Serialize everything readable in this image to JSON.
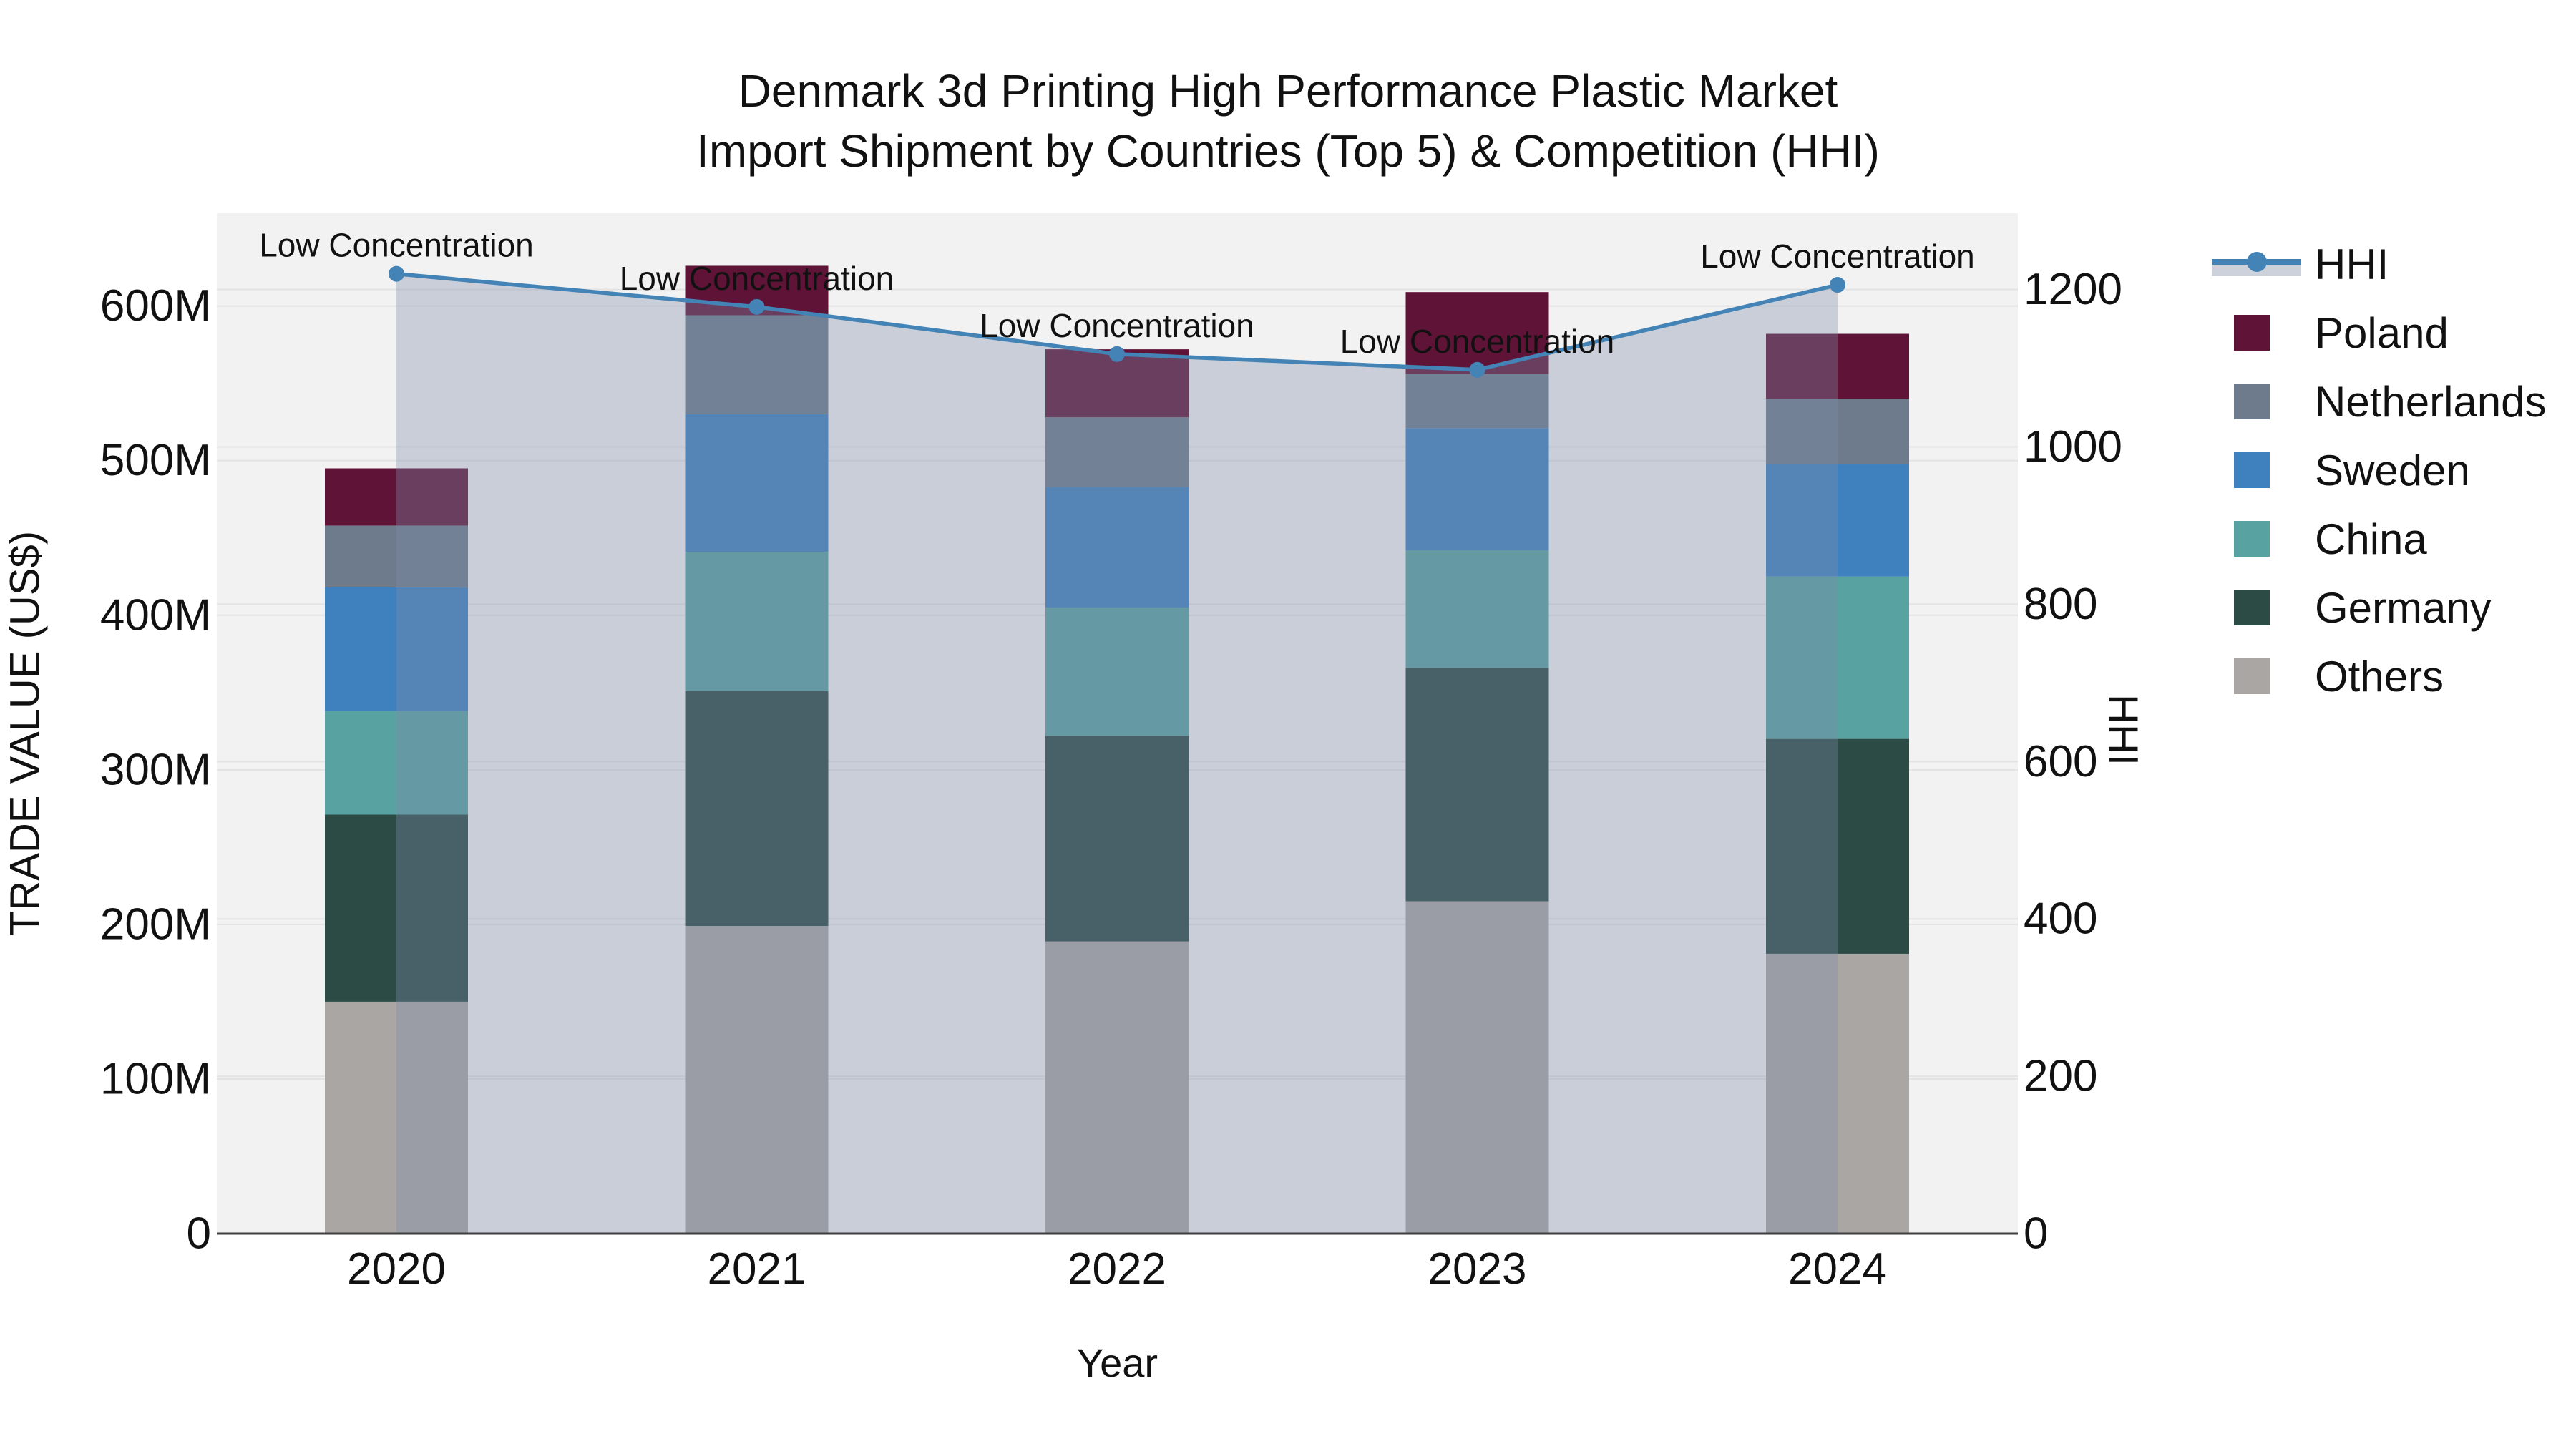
{
  "title": {
    "line1": "Denmark 3d Printing High Performance Plastic Market",
    "line2": "Import Shipment by Countries (Top 5) & Competition (HHI)"
  },
  "axes": {
    "left": {
      "title": "TRADE VALUE (US$)",
      "tick_labels": [
        "0",
        "100M",
        "200M",
        "300M",
        "400M",
        "500M",
        "600M"
      ],
      "tick_values": [
        0,
        100,
        200,
        300,
        400,
        500,
        600
      ]
    },
    "right": {
      "title": "HHI",
      "tick_labels": [
        "0",
        "200",
        "400",
        "600",
        "800",
        "1000",
        "1200"
      ],
      "tick_values": [
        0,
        200,
        400,
        600,
        800,
        1000,
        1200
      ]
    },
    "x": {
      "title": "Year",
      "categories": [
        "2020",
        "2021",
        "2022",
        "2023",
        "2024"
      ]
    }
  },
  "legend": {
    "items": [
      {
        "label": "HHI",
        "type": "line",
        "color": "#4383b5",
        "band": "#ccd1dc"
      },
      {
        "label": "Poland",
        "type": "swatch",
        "color": "#5f1437"
      },
      {
        "label": "Netherlands",
        "type": "swatch",
        "color": "#6e7b8c"
      },
      {
        "label": "Sweden",
        "type": "swatch",
        "color": "#3f80bf"
      },
      {
        "label": "China",
        "type": "swatch",
        "color": "#58a2a1"
      },
      {
        "label": "Germany",
        "type": "swatch",
        "color": "#2c4b45"
      },
      {
        "label": "Others",
        "type": "swatch",
        "color": "#a9a6a4"
      }
    ]
  },
  "chart_data": {
    "type": "bar",
    "subtype": "stacked-bars-with-line-overlay",
    "categories": [
      "2020",
      "2021",
      "2022",
      "2023",
      "2024"
    ],
    "bar_value_unit": "trade value, US$ million",
    "series": [
      {
        "name": "Poland",
        "color": "#5f1437",
        "values": [
          37,
          32,
          44,
          53,
          42
        ]
      },
      {
        "name": "Netherlands",
        "color": "#6e7b8c",
        "values": [
          40,
          64,
          45,
          35,
          42
        ]
      },
      {
        "name": "Sweden",
        "color": "#3f80bf",
        "values": [
          80,
          89,
          78,
          79,
          73
        ]
      },
      {
        "name": "China",
        "color": "#58a2a1",
        "values": [
          67,
          90,
          83,
          76,
          105
        ]
      },
      {
        "name": "Germany",
        "color": "#2c4b45",
        "values": [
          121,
          152,
          133,
          151,
          139
        ]
      },
      {
        "name": "Others",
        "color": "#a9a6a4",
        "values": [
          150,
          199,
          189,
          215,
          181
        ]
      }
    ],
    "stack_order_bottom_to_top": [
      "Others",
      "Germany",
      "China",
      "Sweden",
      "Netherlands",
      "Poland"
    ],
    "bar_totals": [
      495,
      626,
      572,
      609,
      582
    ],
    "line_series": {
      "name": "HHI",
      "axis": "right",
      "color": "#4383b5",
      "fill_color": "rgba(125,139,170,0.35)",
      "values": [
        1220,
        1178,
        1118,
        1098,
        1206
      ]
    },
    "annotations": [
      "Low Concentration",
      "Low Concentration",
      "Low Concentration",
      "Low Concentration",
      "Low Concentration"
    ],
    "ylim_left": [
      0,
      660
    ],
    "ylim_right": [
      0,
      1297
    ],
    "xlabel": "Year",
    "ylabel_left": "TRADE VALUE (US$)",
    "ylabel_right": "HHI",
    "grid": "horizontal gridlines for both y axes",
    "legend_position": "right"
  },
  "colors": {
    "plot_bg": "#f2f2f2",
    "grid": "#e3e3e3",
    "axis_line": "#3f3f3f",
    "text": "#111111"
  }
}
